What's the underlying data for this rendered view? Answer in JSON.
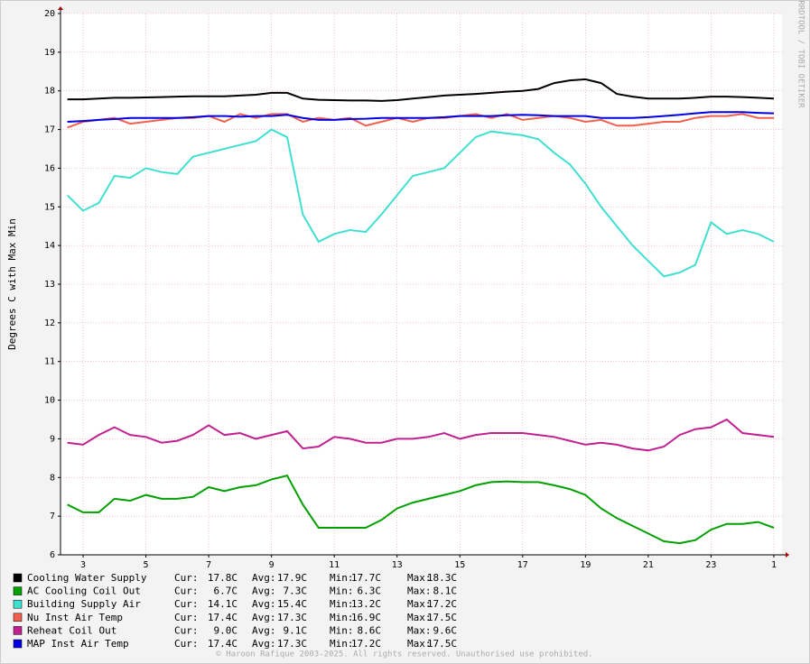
{
  "chart_data": {
    "type": "line",
    "ylabel": "Degrees C with Max Min",
    "side_text": "RRDTOOL / TOBI OETIKER",
    "footer": "© Haroon Rafique 2003-2025. All rights reserved. Unauthorised use prohibited.",
    "stat_labels": [
      "Cur:",
      "Avg:",
      "Min:",
      "Max:"
    ],
    "xlim": [
      2.28,
      25.26
    ],
    "xticks": [
      3,
      5,
      7,
      9,
      11,
      13,
      15,
      17,
      19,
      21,
      23,
      {
        "value": 25,
        "label": "1"
      }
    ],
    "ylim": [
      6,
      20
    ],
    "yticks": [
      6,
      7,
      8,
      9,
      10,
      11,
      12,
      13,
      14,
      15,
      16,
      17,
      18,
      19,
      20
    ],
    "grid": true,
    "x": [
      2.5,
      3,
      3.5,
      4,
      4.5,
      5,
      5.5,
      6,
      6.5,
      7,
      7.5,
      8,
      8.5,
      9,
      9.5,
      10,
      10.5,
      11,
      11.5,
      12,
      12.5,
      13,
      13.5,
      14,
      14.5,
      15,
      15.5,
      16,
      16.5,
      17,
      17.5,
      18,
      18.5,
      19,
      19.5,
      20,
      20.5,
      21,
      21.5,
      22,
      22.5,
      23,
      23.5,
      24,
      24.5,
      25
    ],
    "series": [
      {
        "name": "Cooling Water Supply",
        "color": "#000000",
        "stats": [
          "17.8C",
          "17.9C",
          "17.7C",
          "18.3C"
        ],
        "values": [
          17.78,
          17.78,
          17.8,
          17.82,
          17.82,
          17.83,
          17.84,
          17.85,
          17.86,
          17.86,
          17.86,
          17.88,
          17.9,
          17.95,
          17.95,
          17.8,
          17.77,
          17.76,
          17.75,
          17.75,
          17.74,
          17.76,
          17.8,
          17.84,
          17.88,
          17.9,
          17.92,
          17.95,
          17.98,
          18.0,
          18.05,
          18.2,
          18.27,
          18.3,
          18.2,
          17.92,
          17.85,
          17.8,
          17.8,
          17.8,
          17.82,
          17.85,
          17.85,
          17.84,
          17.82,
          17.8
        ]
      },
      {
        "name": "AC Cooling Coil Out",
        "color": "#00a000",
        "stats": [
          "6.7C",
          "7.3C",
          "6.3C",
          "8.1C"
        ],
        "values": [
          7.3,
          7.1,
          7.1,
          7.45,
          7.4,
          7.55,
          7.45,
          7.45,
          7.5,
          7.75,
          7.65,
          7.75,
          7.8,
          7.95,
          8.05,
          7.3,
          6.7,
          6.7,
          6.7,
          6.7,
          6.9,
          7.2,
          7.35,
          7.45,
          7.55,
          7.65,
          7.8,
          7.88,
          7.9,
          7.88,
          7.88,
          7.8,
          7.7,
          7.55,
          7.2,
          6.95,
          6.75,
          6.55,
          6.35,
          6.3,
          6.38,
          6.65,
          6.8,
          6.8,
          6.85,
          6.7
        ]
      },
      {
        "name": "Building Supply Air",
        "color": "#40e0d0",
        "stats": [
          "14.1C",
          "15.4C",
          "13.2C",
          "17.2C"
        ],
        "values": [
          15.3,
          14.9,
          15.1,
          15.8,
          15.75,
          16.0,
          15.9,
          15.85,
          16.3,
          16.4,
          16.5,
          16.6,
          16.7,
          17.0,
          16.8,
          14.8,
          14.1,
          14.3,
          14.4,
          14.35,
          14.8,
          15.3,
          15.8,
          15.9,
          16.0,
          16.4,
          16.8,
          16.95,
          16.9,
          16.85,
          16.75,
          16.4,
          16.1,
          15.6,
          15.0,
          14.5,
          14.0,
          13.6,
          13.2,
          13.3,
          13.5,
          14.6,
          14.3,
          14.4,
          14.3,
          14.1
        ]
      },
      {
        "name": "Nu Inst Air Temp",
        "color": "#f06050",
        "stats": [
          "17.4C",
          "17.3C",
          "16.9C",
          "17.5C"
        ],
        "values": [
          17.05,
          17.2,
          17.25,
          17.3,
          17.15,
          17.2,
          17.25,
          17.3,
          17.3,
          17.35,
          17.2,
          17.4,
          17.3,
          17.4,
          17.4,
          17.2,
          17.3,
          17.25,
          17.3,
          17.1,
          17.2,
          17.3,
          17.2,
          17.3,
          17.3,
          17.35,
          17.4,
          17.3,
          17.4,
          17.25,
          17.3,
          17.35,
          17.3,
          17.2,
          17.25,
          17.1,
          17.1,
          17.15,
          17.2,
          17.2,
          17.3,
          17.35,
          17.35,
          17.4,
          17.3,
          17.3
        ]
      },
      {
        "name": "Reheat Coil Out",
        "color": "#c02090",
        "stats": [
          "9.0C",
          "9.1C",
          "8.6C",
          "9.6C"
        ],
        "values": [
          8.9,
          8.85,
          9.1,
          9.3,
          9.1,
          9.05,
          8.9,
          8.95,
          9.1,
          9.35,
          9.1,
          9.15,
          9.0,
          9.1,
          9.2,
          8.75,
          8.8,
          9.05,
          9.0,
          8.9,
          8.9,
          9.0,
          9.0,
          9.05,
          9.15,
          9.0,
          9.1,
          9.15,
          9.15,
          9.15,
          9.1,
          9.05,
          8.95,
          8.85,
          8.9,
          8.85,
          8.75,
          8.7,
          8.8,
          9.1,
          9.25,
          9.3,
          9.5,
          9.15,
          9.1,
          9.05
        ]
      },
      {
        "name": "MAP Inst Air Temp",
        "color": "#0000e0",
        "stats": [
          "17.4C",
          "17.3C",
          "17.2C",
          "17.5C"
        ],
        "values": [
          17.2,
          17.22,
          17.25,
          17.27,
          17.3,
          17.3,
          17.3,
          17.3,
          17.32,
          17.35,
          17.35,
          17.33,
          17.35,
          17.35,
          17.38,
          17.3,
          17.25,
          17.25,
          17.27,
          17.28,
          17.3,
          17.3,
          17.3,
          17.3,
          17.32,
          17.35,
          17.35,
          17.35,
          17.37,
          17.38,
          17.37,
          17.35,
          17.35,
          17.35,
          17.3,
          17.3,
          17.3,
          17.32,
          17.35,
          17.38,
          17.42,
          17.45,
          17.45,
          17.45,
          17.43,
          17.42
        ]
      }
    ]
  }
}
